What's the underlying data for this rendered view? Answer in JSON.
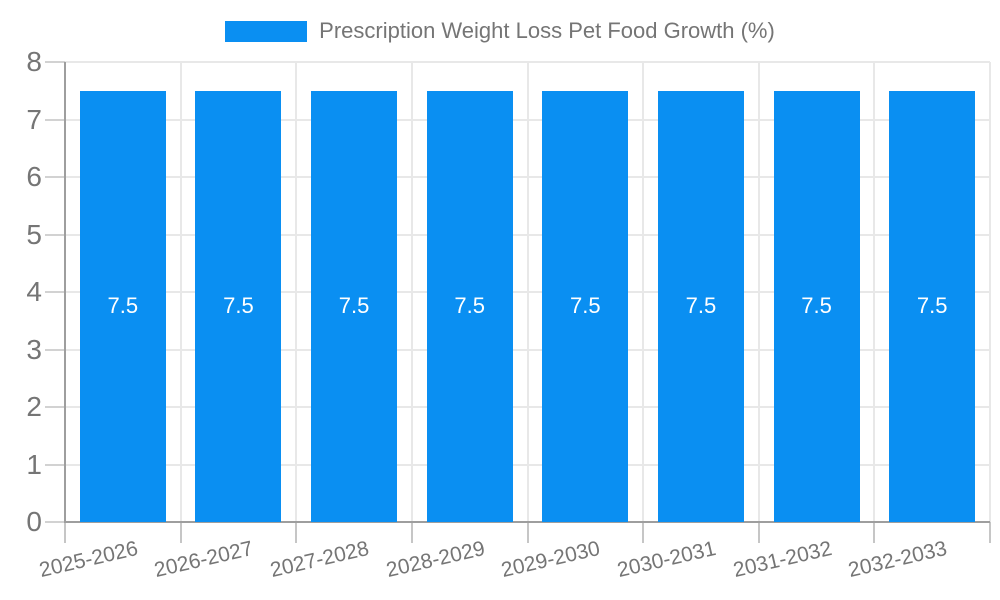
{
  "legend": {
    "label": "Prescription Weight Loss Pet Food Growth (%)"
  },
  "colors": {
    "bar": "#0a8ff2",
    "grid": "#e8e8e8",
    "axis": "#9e9e9e",
    "tick": "#c6c6c6",
    "axis_text": "#757575",
    "value_label_text": "#ffffff",
    "background": "#ffffff"
  },
  "chart_data": {
    "type": "bar",
    "title": "Prescription Weight Loss Pet Food Growth (%)",
    "categories": [
      "2025-2026",
      "2026-2027",
      "2027-2028",
      "2028-2029",
      "2029-2030",
      "2030-2031",
      "2031-2032",
      "2032-2033"
    ],
    "values": [
      7.5,
      7.5,
      7.5,
      7.5,
      7.5,
      7.5,
      7.5,
      7.5
    ],
    "bar_labels": [
      "7.5",
      "7.5",
      "7.5",
      "7.5",
      "7.5",
      "7.5",
      "7.5",
      "7.5"
    ],
    "xlabel": "",
    "ylabel": "",
    "ylim": [
      0,
      8
    ],
    "yticks": [
      0,
      1,
      2,
      3,
      4,
      5,
      6,
      7,
      8
    ],
    "grid": true,
    "legend_position": "top-center",
    "x_label_rotation_deg": -13
  }
}
